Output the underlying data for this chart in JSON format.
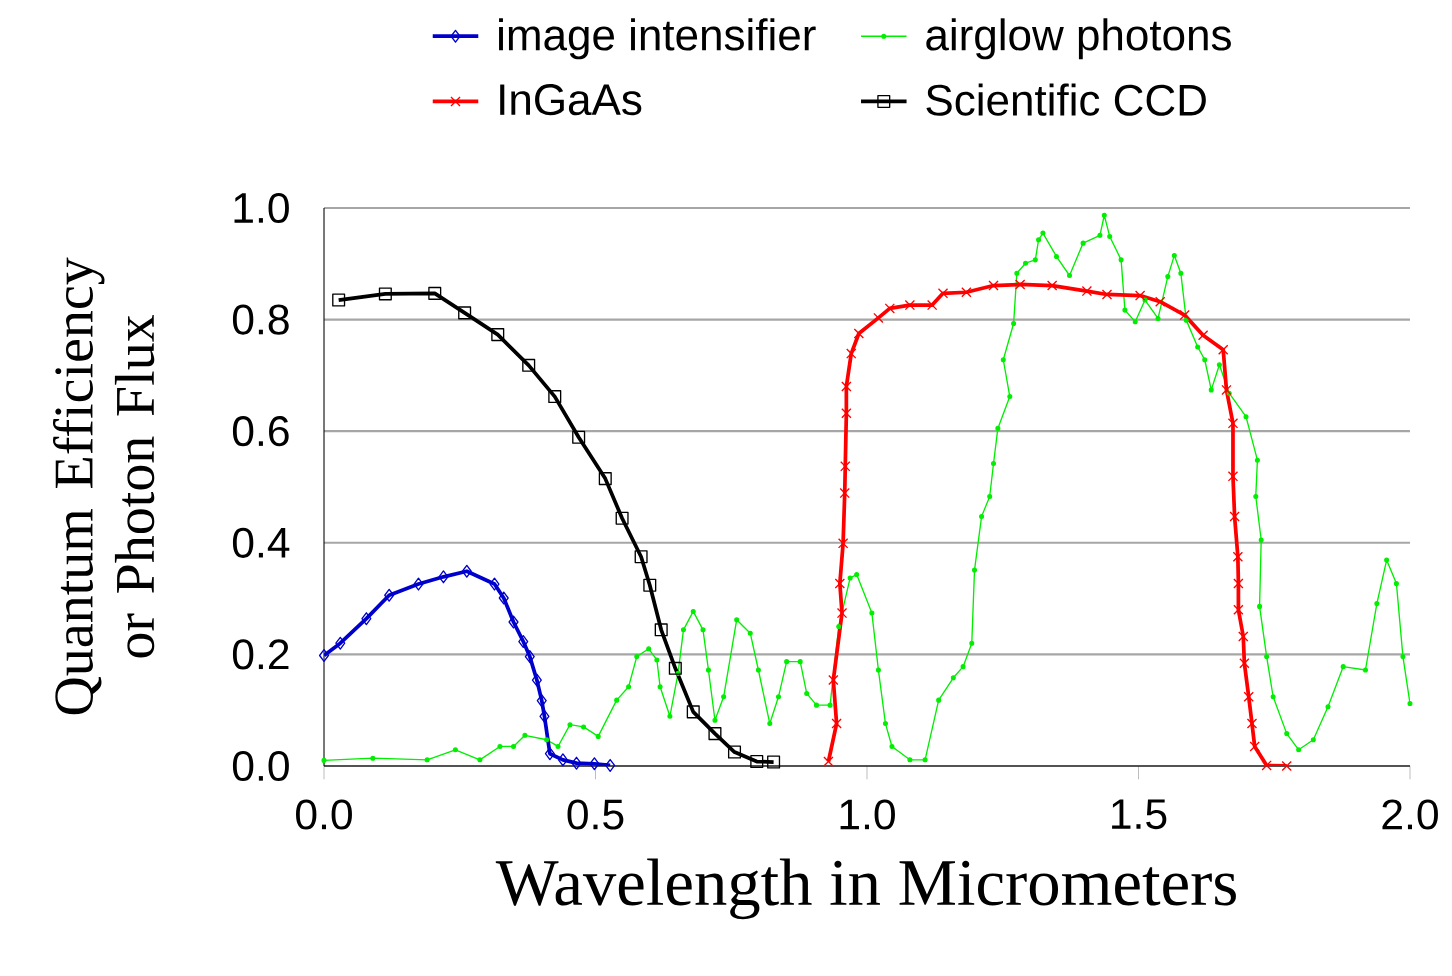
{
  "chart_data": {
    "type": "line",
    "xlabel": "Wavelength in Micrometers",
    "ylabel": "Quantum Efficiency or Photon Flux",
    "xlim": [
      0,
      2
    ],
    "ylim": [
      0,
      1
    ],
    "xticks": [
      {
        "value": 0,
        "label": "0.0"
      },
      {
        "value": 0.5,
        "label": "0.5"
      },
      {
        "value": 1,
        "label": "1.0"
      },
      {
        "value": 1.5,
        "label": "1.5"
      },
      {
        "value": 2,
        "label": "2.0"
      }
    ],
    "yticks": [
      {
        "value": 0,
        "label": "0.0"
      },
      {
        "value": 0.2,
        "label": "0.2"
      },
      {
        "value": 0.4,
        "label": "0.4"
      },
      {
        "value": 0.6,
        "label": "0.6"
      },
      {
        "value": 0.8,
        "label": "0.8"
      },
      {
        "value": 1,
        "label": "1.0"
      }
    ],
    "grid": "y",
    "legend": "top",
    "series": [
      {
        "name": "image intensifier",
        "color": "#0000cc",
        "marker": "diamond",
        "x": [
          0.0,
          0.03,
          0.078,
          0.12,
          0.174,
          0.22,
          0.263,
          0.314,
          0.331,
          0.349,
          0.367,
          0.379,
          0.392,
          0.401,
          0.406,
          0.416,
          0.44,
          0.465,
          0.498,
          0.527
        ],
        "values": [
          0.198,
          0.22,
          0.264,
          0.306,
          0.326,
          0.339,
          0.349,
          0.326,
          0.301,
          0.258,
          0.223,
          0.196,
          0.154,
          0.117,
          0.089,
          0.022,
          0.011,
          0.005,
          0.004,
          0.001
        ]
      },
      {
        "name": "airglow photons",
        "color": "#00ee00",
        "marker": "circle",
        "x": [
          0.0,
          0.09,
          0.19,
          0.242,
          0.287,
          0.324,
          0.349,
          0.37,
          0.41,
          0.431,
          0.453,
          0.478,
          0.505,
          0.539,
          0.561,
          0.576,
          0.598,
          0.613,
          0.619,
          0.637,
          0.652,
          0.662,
          0.68,
          0.698,
          0.708,
          0.72,
          0.736,
          0.76,
          0.785,
          0.8,
          0.821,
          0.837,
          0.852,
          0.877,
          0.889,
          0.907,
          0.932,
          0.948,
          0.969,
          0.981,
          1.009,
          1.021,
          1.034,
          1.046,
          1.079,
          1.107,
          1.132,
          1.159,
          1.177,
          1.193,
          1.198,
          1.211,
          1.226,
          1.233,
          1.241,
          1.263,
          1.251,
          1.27,
          1.276,
          1.292,
          1.31,
          1.316,
          1.324,
          1.349,
          1.373,
          1.398,
          1.429,
          1.437,
          1.447,
          1.468,
          1.475,
          1.494,
          1.512,
          1.536,
          1.554,
          1.566,
          1.578,
          1.588,
          1.609,
          1.622,
          1.634,
          1.649,
          1.667,
          1.698,
          1.719,
          1.716,
          1.726,
          1.723,
          1.736,
          1.748,
          1.773,
          1.795,
          1.822,
          1.849,
          1.877,
          1.918,
          1.939,
          1.957,
          1.975,
          1.987,
          2.0
        ],
        "values": [
          0.01,
          0.014,
          0.011,
          0.029,
          0.011,
          0.035,
          0.035,
          0.055,
          0.047,
          0.035,
          0.074,
          0.07,
          0.053,
          0.118,
          0.142,
          0.196,
          0.21,
          0.19,
          0.142,
          0.089,
          0.166,
          0.244,
          0.277,
          0.244,
          0.172,
          0.082,
          0.124,
          0.262,
          0.238,
          0.172,
          0.076,
          0.124,
          0.187,
          0.187,
          0.13,
          0.109,
          0.109,
          0.25,
          0.337,
          0.343,
          0.274,
          0.172,
          0.076,
          0.035,
          0.011,
          0.011,
          0.118,
          0.158,
          0.178,
          0.22,
          0.351,
          0.447,
          0.483,
          0.542,
          0.605,
          0.662,
          0.728,
          0.793,
          0.883,
          0.901,
          0.907,
          0.943,
          0.955,
          0.913,
          0.879,
          0.937,
          0.951,
          0.987,
          0.949,
          0.907,
          0.817,
          0.796,
          0.835,
          0.802,
          0.877,
          0.915,
          0.883,
          0.799,
          0.751,
          0.728,
          0.674,
          0.719,
          0.668,
          0.626,
          0.548,
          0.483,
          0.405,
          0.286,
          0.196,
          0.124,
          0.058,
          0.029,
          0.047,
          0.106,
          0.178,
          0.172,
          0.291,
          0.369,
          0.327,
          0.196,
          0.112
        ]
      },
      {
        "name": "InGaAs",
        "color": "#ff0000",
        "marker": "cross",
        "x": [
          0.929,
          0.944,
          0.938,
          0.954,
          0.95,
          0.956,
          0.959,
          0.96,
          0.962,
          0.962,
          0.971,
          0.985,
          1.021,
          1.042,
          1.079,
          1.12,
          1.14,
          1.183,
          1.233,
          1.282,
          1.341,
          1.405,
          1.442,
          1.503,
          1.54,
          1.585,
          1.619,
          1.656,
          1.662,
          1.674,
          1.674,
          1.677,
          1.683,
          1.684,
          1.684,
          1.693,
          1.695,
          1.703,
          1.709,
          1.714,
          1.736,
          1.773
        ],
        "values": [
          0.008,
          0.076,
          0.154,
          0.274,
          0.327,
          0.399,
          0.489,
          0.537,
          0.632,
          0.68,
          0.739,
          0.775,
          0.803,
          0.82,
          0.826,
          0.826,
          0.847,
          0.849,
          0.861,
          0.863,
          0.861,
          0.851,
          0.845,
          0.843,
          0.832,
          0.808,
          0.772,
          0.746,
          0.674,
          0.614,
          0.519,
          0.447,
          0.375,
          0.327,
          0.28,
          0.232,
          0.184,
          0.124,
          0.076,
          0.035,
          0.001,
          0.0
        ]
      },
      {
        "name": "Scientific CCD",
        "color": "#000000",
        "marker": "square",
        "x": [
          0.027,
          0.113,
          0.204,
          0.259,
          0.32,
          0.377,
          0.425,
          0.469,
          0.518,
          0.549,
          0.584,
          0.6,
          0.621,
          0.647,
          0.68,
          0.72,
          0.756,
          0.797,
          0.828
        ],
        "values": [
          0.835,
          0.846,
          0.847,
          0.812,
          0.773,
          0.718,
          0.662,
          0.589,
          0.515,
          0.444,
          0.375,
          0.324,
          0.244,
          0.175,
          0.097,
          0.058,
          0.025,
          0.008,
          0.007
        ]
      }
    ]
  }
}
